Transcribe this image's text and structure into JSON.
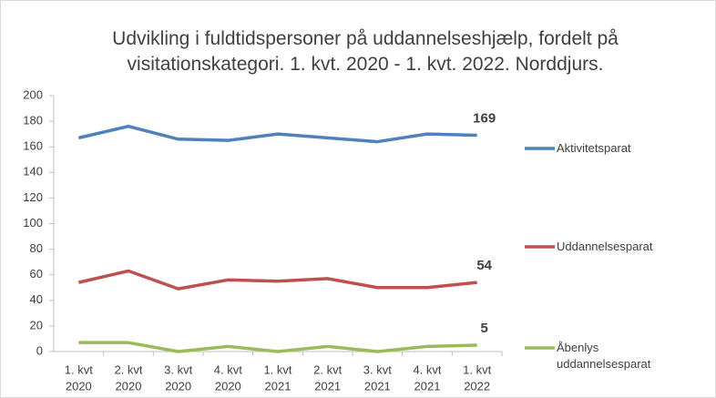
{
  "chart_data": {
    "type": "line",
    "title": "Udvikling i fuldtidspersoner på uddannelseshjælp, fordelt på visitationskategori. 1. kvt. 2020 - 1. kvt. 2022. Norddjurs.",
    "categories": [
      [
        "1. kvt",
        "2020"
      ],
      [
        "2. kvt",
        "2020"
      ],
      [
        "3. kvt",
        "2020"
      ],
      [
        "4. kvt",
        "2020"
      ],
      [
        "1. kvt",
        "2021"
      ],
      [
        "2. kvt",
        "2021"
      ],
      [
        "3. kvt",
        "2021"
      ],
      [
        "4. kvt",
        "2021"
      ],
      [
        "1. kvt",
        "2022"
      ]
    ],
    "series": [
      {
        "name": "Aktivitetsparat",
        "color": "#4f81bd",
        "values": [
          167,
          176,
          166,
          165,
          170,
          167,
          164,
          170,
          169
        ]
      },
      {
        "name": "Uddannelsesparat",
        "color": "#c0504d",
        "values": [
          54,
          63,
          49,
          56,
          55,
          57,
          50,
          50,
          54
        ]
      },
      {
        "name": "Åbenlys uddannelsesparat",
        "color": "#9bbb59",
        "values": [
          7,
          7,
          0,
          4,
          0,
          4,
          0,
          4,
          5
        ]
      }
    ],
    "ylim": [
      0,
      200
    ],
    "yticks": [
      0,
      20,
      40,
      60,
      80,
      100,
      120,
      140,
      160,
      180,
      200
    ],
    "grid": false
  }
}
